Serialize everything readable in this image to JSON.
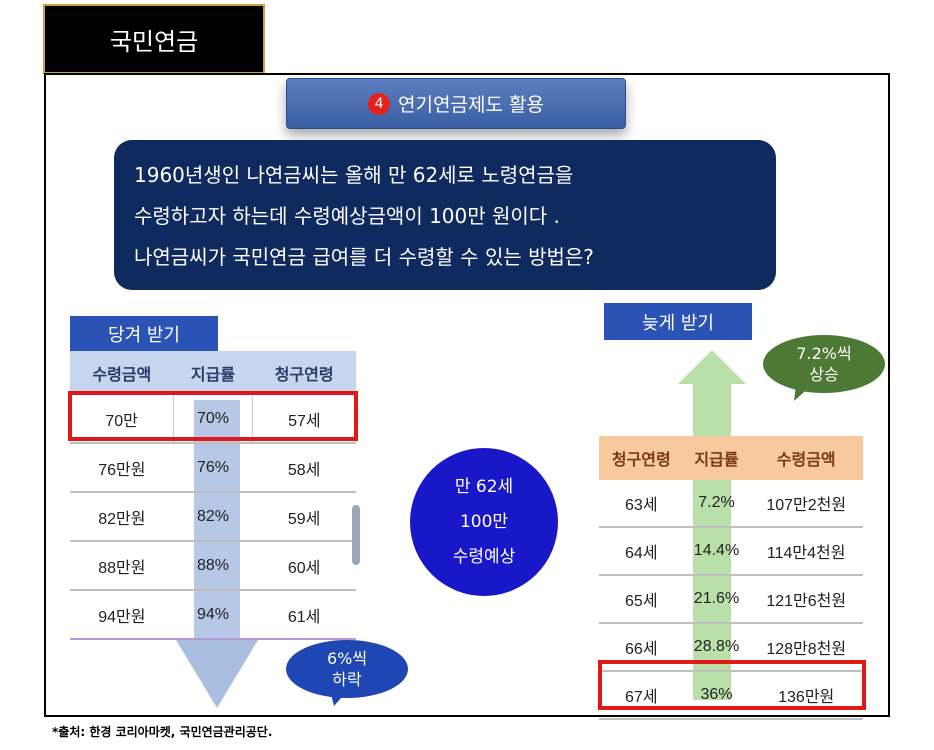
{
  "title": "국민연금",
  "heading": {
    "badge": "4",
    "text": "연기연금제도 활용"
  },
  "question": {
    "line1": "1960년생인 나연금씨는 올해 만 62세로 노령연금을",
    "line2": "수령하고자 하는데 수령예상금액이 100만 원이다 .",
    "line3": "나연금씨가 국민연금 급여를 더 수령할 수 있는 방법은?"
  },
  "early": {
    "label": "당겨 받기",
    "headers": [
      "수령금액",
      "지급률",
      "청구연령"
    ],
    "rows": [
      [
        "70만",
        "70%",
        "57세"
      ],
      [
        "76만원",
        "76%",
        "58세"
      ],
      [
        "82만원",
        "82%",
        "59세"
      ],
      [
        "88만원",
        "88%",
        "60세"
      ],
      [
        "94만원",
        "94%",
        "61세"
      ]
    ],
    "note_line1": "6%씩",
    "note_line2": "하락"
  },
  "late": {
    "label": "늦게 받기",
    "headers": [
      "청구연령",
      "지급률",
      "수령금액"
    ],
    "rows": [
      [
        "63세",
        "7.2%",
        "107만2천원"
      ],
      [
        "64세",
        "14.4%",
        "114만4천원"
      ],
      [
        "65세",
        "21.6%",
        "121만6천원"
      ],
      [
        "66세",
        "28.8%",
        "128만8천원"
      ],
      [
        "67세",
        "36%",
        "136만원"
      ]
    ],
    "note_line1": "7.2%씩",
    "note_line2": "상승"
  },
  "center": {
    "line1": "만 62세",
    "line2": "100만",
    "line3": "수령예상"
  },
  "source": "*출처: 한경 코리아마켓, 국민연금관리공단."
}
